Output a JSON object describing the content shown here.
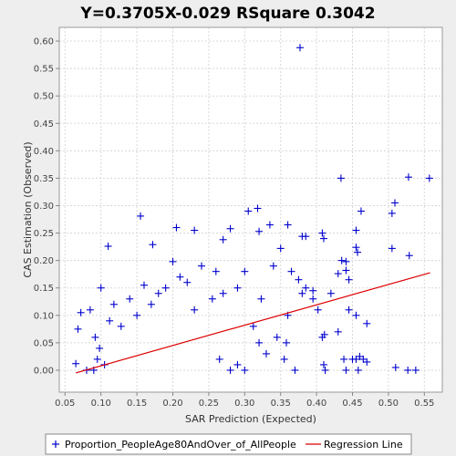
{
  "chart_data": {
    "type": "scatter",
    "title": "Y=0.3705X-0.029    RSquare 0.3042",
    "xlabel": "SAR Prediction (Expected)",
    "ylabel": "CAS Estimation (Observed)",
    "xlim": [
      0.042,
      0.575
    ],
    "ylim": [
      -0.04,
      0.625
    ],
    "x_ticks": [
      "0.05",
      "0.10",
      "0.15",
      "0.20",
      "0.25",
      "0.30",
      "0.35",
      "0.40",
      "0.45",
      "0.50",
      "0.55"
    ],
    "y_ticks": [
      "0.00",
      "0.05",
      "0.10",
      "0.15",
      "0.20",
      "0.25",
      "0.30",
      "0.35",
      "0.40",
      "0.45",
      "0.50",
      "0.55",
      "0.60"
    ],
    "grid": true,
    "legend_position": "bottom",
    "regression": {
      "slope": 0.3705,
      "intercept": -0.029,
      "x_range": [
        0.065,
        0.558
      ],
      "color": "#dd0000"
    },
    "series": [
      {
        "name": "Proportion_PeopleAge80AndOver_of_AllPeople",
        "marker": "plus",
        "color": "#0000cc",
        "points": [
          [
            0.377,
            0.588
          ],
          [
            0.557,
            0.35
          ],
          [
            0.528,
            0.352
          ],
          [
            0.434,
            0.35
          ],
          [
            0.462,
            0.29
          ],
          [
            0.509,
            0.305
          ],
          [
            0.505,
            0.286
          ],
          [
            0.305,
            0.29
          ],
          [
            0.318,
            0.295
          ],
          [
            0.155,
            0.281
          ],
          [
            0.408,
            0.25
          ],
          [
            0.41,
            0.24
          ],
          [
            0.455,
            0.255
          ],
          [
            0.36,
            0.265
          ],
          [
            0.335,
            0.265
          ],
          [
            0.32,
            0.253
          ],
          [
            0.28,
            0.258
          ],
          [
            0.23,
            0.255
          ],
          [
            0.205,
            0.26
          ],
          [
            0.35,
            0.222
          ],
          [
            0.38,
            0.244
          ],
          [
            0.385,
            0.244
          ],
          [
            0.455,
            0.224
          ],
          [
            0.457,
            0.215
          ],
          [
            0.505,
            0.222
          ],
          [
            0.529,
            0.209
          ],
          [
            0.11,
            0.226
          ],
          [
            0.172,
            0.229
          ],
          [
            0.27,
            0.238
          ],
          [
            0.435,
            0.2
          ],
          [
            0.441,
            0.198
          ],
          [
            0.441,
            0.182
          ],
          [
            0.43,
            0.176
          ],
          [
            0.445,
            0.165
          ],
          [
            0.42,
            0.14
          ],
          [
            0.47,
            0.085
          ],
          [
            0.43,
            0.07
          ],
          [
            0.411,
            0.065
          ],
          [
            0.408,
            0.06
          ],
          [
            0.438,
            0.02
          ],
          [
            0.45,
            0.02
          ],
          [
            0.455,
            0.02
          ],
          [
            0.46,
            0.025
          ],
          [
            0.465,
            0.02
          ],
          [
            0.47,
            0.015
          ],
          [
            0.441,
            0.0
          ],
          [
            0.458,
            0.0
          ],
          [
            0.51,
            0.005
          ],
          [
            0.527,
            0.0
          ],
          [
            0.538,
            0.0
          ],
          [
            0.41,
            0.01
          ],
          [
            0.412,
            0.0
          ],
          [
            0.395,
            0.145
          ],
          [
            0.38,
            0.14
          ],
          [
            0.395,
            0.13
          ],
          [
            0.402,
            0.11
          ],
          [
            0.445,
            0.11
          ],
          [
            0.455,
            0.1
          ],
          [
            0.065,
            0.012
          ],
          [
            0.068,
            0.075
          ],
          [
            0.072,
            0.105
          ],
          [
            0.085,
            0.11
          ],
          [
            0.1,
            0.15
          ],
          [
            0.092,
            0.06
          ],
          [
            0.098,
            0.04
          ],
          [
            0.095,
            0.02
          ],
          [
            0.08,
            0.0
          ],
          [
            0.09,
            0.0
          ],
          [
            0.105,
            0.01
          ],
          [
            0.112,
            0.09
          ],
          [
            0.118,
            0.12
          ],
          [
            0.128,
            0.08
          ],
          [
            0.14,
            0.13
          ],
          [
            0.16,
            0.155
          ],
          [
            0.2,
            0.198
          ],
          [
            0.24,
            0.19
          ],
          [
            0.26,
            0.18
          ],
          [
            0.3,
            0.18
          ],
          [
            0.34,
            0.19
          ],
          [
            0.365,
            0.18
          ],
          [
            0.375,
            0.165
          ],
          [
            0.385,
            0.15
          ],
          [
            0.36,
            0.1
          ],
          [
            0.345,
            0.06
          ],
          [
            0.33,
            0.03
          ],
          [
            0.355,
            0.02
          ],
          [
            0.3,
            0.0
          ],
          [
            0.29,
            0.01
          ],
          [
            0.28,
            0.0
          ],
          [
            0.265,
            0.02
          ],
          [
            0.37,
            0.0
          ],
          [
            0.358,
            0.05
          ],
          [
            0.32,
            0.05
          ],
          [
            0.312,
            0.08
          ],
          [
            0.323,
            0.13
          ],
          [
            0.29,
            0.15
          ],
          [
            0.27,
            0.14
          ],
          [
            0.255,
            0.13
          ],
          [
            0.23,
            0.11
          ],
          [
            0.22,
            0.16
          ],
          [
            0.21,
            0.17
          ],
          [
            0.19,
            0.15
          ],
          [
            0.18,
            0.14
          ],
          [
            0.17,
            0.12
          ],
          [
            0.15,
            0.1
          ]
        ]
      }
    ]
  },
  "legend": {
    "series_label": "Proportion_PeopleAge80AndOver_of_AllPeople",
    "regression_label": "Regression Line"
  }
}
